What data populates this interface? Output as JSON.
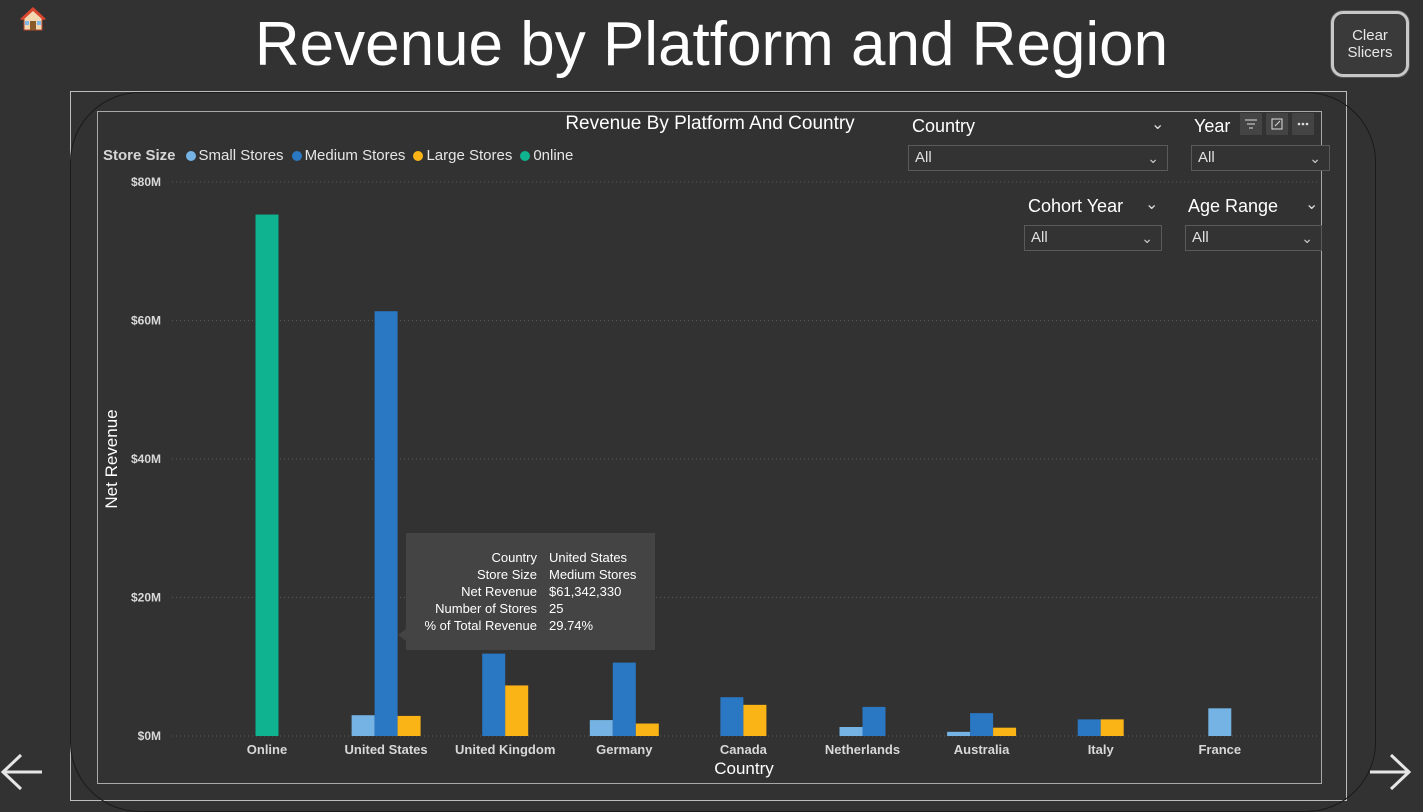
{
  "page": {
    "title": "Revenue by Platform and Region",
    "clear_button": "Clear\nSlicers"
  },
  "icons": {
    "home": "home-icon",
    "back": "arrow-left-icon",
    "forward": "arrow-right-icon"
  },
  "colors": {
    "background": "#323232",
    "small": "#74b3e4",
    "medium": "#2a77c3",
    "large": "#fbb416",
    "online": "#0fb38f"
  },
  "slicers": [
    {
      "label": "Country",
      "value": "All"
    },
    {
      "label": "Year",
      "value": "All"
    },
    {
      "label": "Cohort Year",
      "value": "All"
    },
    {
      "label": "Age Range",
      "value": "All"
    }
  ],
  "legend": {
    "title": "Store Size",
    "items": [
      {
        "label": "Small Stores",
        "color": "#74b3e4"
      },
      {
        "label": "Medium Stores",
        "color": "#2a77c3"
      },
      {
        "label": "Large Stores",
        "color": "#fbb416"
      },
      {
        "label": "0nline",
        "color": "#0fb38f"
      }
    ]
  },
  "chart_data": {
    "type": "bar",
    "title": "Revenue By Platform And Country",
    "xlabel": "Country",
    "ylabel": "Net Revenue",
    "ylim": [
      0,
      80000000
    ],
    "yticks": [
      "$0M",
      "$20M",
      "$40M",
      "$60M",
      "$80M"
    ],
    "grid": true,
    "legend_position": "top-left",
    "categories": [
      "Online",
      "United States",
      "United Kingdom",
      "Germany",
      "Canada",
      "Netherlands",
      "Australia",
      "Italy",
      "France"
    ],
    "series": [
      {
        "name": "Small Stores",
        "values": [
          null,
          3000000,
          null,
          2300000,
          null,
          1300000,
          600000,
          null,
          4000000
        ]
      },
      {
        "name": "Medium Stores",
        "values": [
          null,
          61342330,
          11900000,
          10600000,
          5600000,
          4200000,
          3300000,
          2400000,
          null
        ]
      },
      {
        "name": "Large Stores",
        "values": [
          null,
          2900000,
          7300000,
          1800000,
          4500000,
          null,
          1200000,
          2400000,
          null
        ]
      },
      {
        "name": "0nline",
        "values": [
          75300000,
          null,
          null,
          null,
          null,
          null,
          null,
          null,
          null
        ]
      }
    ]
  },
  "tooltip": {
    "rows": [
      {
        "key": "Country",
        "value": "United States"
      },
      {
        "key": "Store Size",
        "value": "Medium Stores"
      },
      {
        "key": "Net Revenue",
        "value": "$61,342,330"
      },
      {
        "key": "Number of Stores",
        "value": "25"
      },
      {
        "key": "% of Total Revenue",
        "value": "29.74%"
      }
    ]
  }
}
